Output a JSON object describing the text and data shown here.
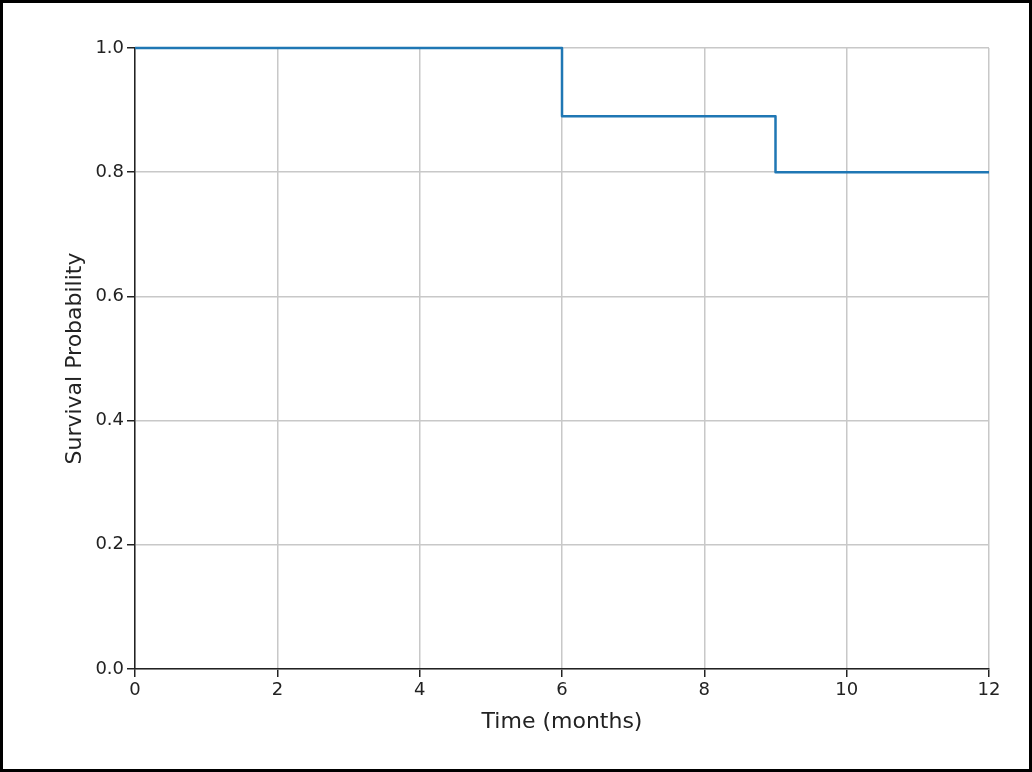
{
  "chart_data": {
    "type": "step",
    "xlabel": "Time (months)",
    "ylabel": "Survival Probability",
    "x": [
      0,
      6,
      9,
      12
    ],
    "values": [
      1.0,
      0.89,
      0.8,
      0.8
    ],
    "color": "#1f77b4",
    "xlim": [
      0,
      12
    ],
    "xticks": [
      0,
      2,
      4,
      6,
      8,
      10,
      12
    ],
    "ylim": [
      0,
      1.0
    ],
    "yticks": [
      {
        "value": 0,
        "label": "0.0"
      },
      {
        "value": 0.2,
        "label": "0.2"
      },
      {
        "value": 0.4,
        "label": "0.4"
      },
      {
        "value": 0.6,
        "label": "0.6"
      },
      {
        "value": 0.8,
        "label": "0.8"
      },
      {
        "value": 1.0,
        "label": "1.0"
      }
    ],
    "grid": true,
    "legend": false,
    "marker": "none",
    "line_style": "solid"
  }
}
